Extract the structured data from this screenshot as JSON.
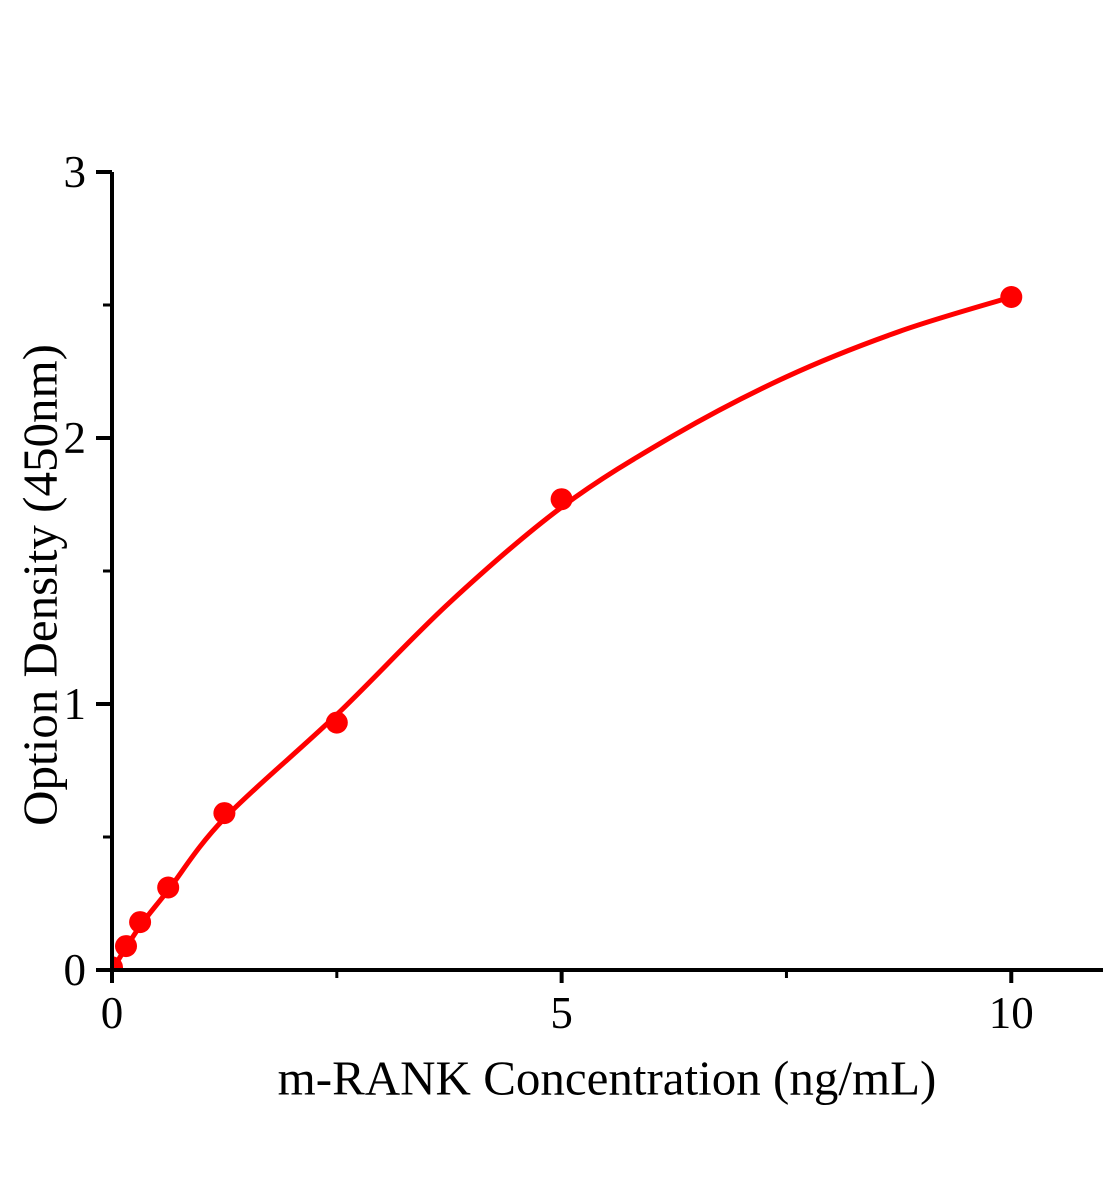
{
  "figure": {
    "background": "#ffffff",
    "axis_color": "#000000",
    "accent_color": "#ff0000"
  },
  "chart_data": {
    "type": "scatter",
    "title": "",
    "xlabel": "m-RANK Concentration (ng/mL)",
    "ylabel": "Option Density (450nm)",
    "xlim": [
      0,
      11.02
    ],
    "ylim": [
      0,
      3
    ],
    "grid": false,
    "legend": "none",
    "x_ticks_major": [
      0,
      5,
      10
    ],
    "x_ticks_minor": [
      2.5,
      7.5
    ],
    "y_ticks_major": [
      0,
      1,
      2,
      3
    ],
    "y_ticks_minor": [
      0.5,
      1.5,
      2.5
    ],
    "series": [
      {
        "name": "standard-points",
        "kind": "scatter",
        "color": "#ff0000",
        "marker_radius": 11,
        "x": [
          0,
          0.156,
          0.3125,
          0.625,
          1.25,
          2.5,
          5,
          10
        ],
        "y": [
          0.01,
          0.09,
          0.18,
          0.31,
          0.59,
          0.93,
          1.77,
          2.53
        ]
      },
      {
        "name": "fit-curve",
        "kind": "line",
        "color": "#ff0000",
        "stroke_width": 5,
        "x": [
          0,
          0.3125,
          0.625,
          1.25,
          2.5,
          3.75,
          5,
          6.25,
          7.5,
          8.75,
          10
        ],
        "y": [
          0,
          0.165,
          0.3,
          0.57,
          0.96,
          1.38,
          1.74,
          2.01,
          2.23,
          2.4,
          2.53
        ]
      }
    ]
  }
}
